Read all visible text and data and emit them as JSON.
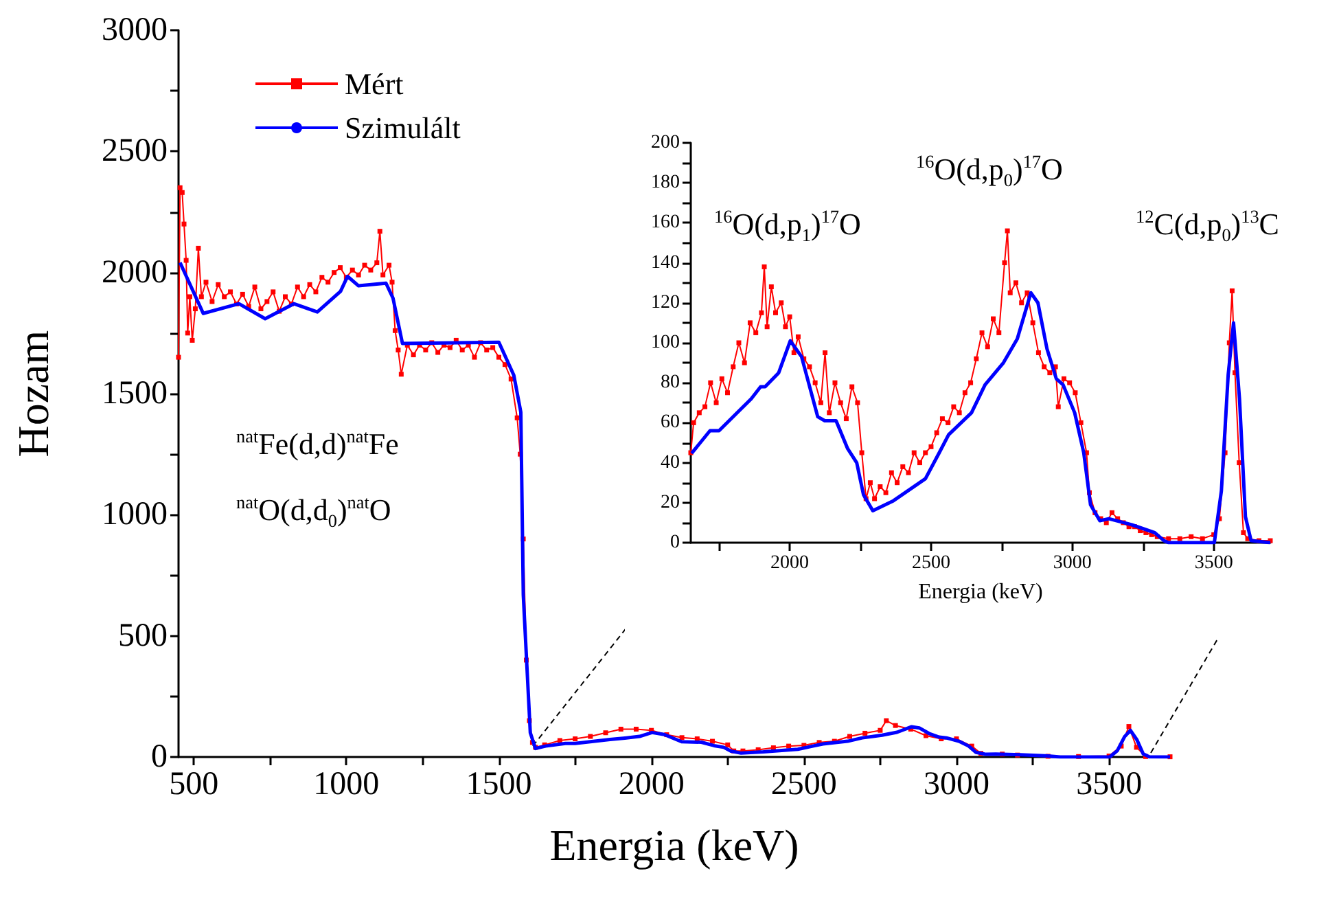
{
  "chart_data": [
    {
      "type": "line",
      "xlabel": "Energia (keV)",
      "ylabel": "Hozam",
      "xlim": [
        450,
        3700
      ],
      "ylim": [
        0,
        3000
      ],
      "xticks": [
        500,
        {
          "value": 750,
          "label": null
        },
        1000,
        {
          "value": 1250,
          "label": null
        },
        1500,
        {
          "value": 1750,
          "label": null
        },
        2000,
        {
          "value": 2250,
          "label": null
        },
        2500,
        {
          "value": 2750,
          "label": null
        },
        3000,
        {
          "value": 3250,
          "label": null
        },
        3500
      ],
      "yticks": [
        0,
        {
          "value": 250,
          "label": null
        },
        500,
        {
          "value": 750,
          "label": null
        },
        1000,
        {
          "value": 1250,
          "label": null
        },
        1500,
        {
          "value": 1750,
          "label": null
        },
        2000,
        {
          "value": 2250,
          "label": null
        },
        2500,
        {
          "value": 2750,
          "label": null
        },
        3000
      ],
      "legend": "top left",
      "grid": false,
      "annotations": [
        "$^{nat}$Fe(d,d)$^{nat}$Fe",
        "$^{nat}$O(d,d$_{0}$)$^{nat}$O"
      ],
      "series": [
        {
          "name": "Mért",
          "color": "#ff0000",
          "marker": "square",
          "x": [
            450,
            455,
            462,
            468,
            475,
            480,
            487,
            495,
            505,
            515,
            525,
            540,
            560,
            580,
            600,
            620,
            640,
            660,
            680,
            700,
            720,
            740,
            760,
            780,
            800,
            820,
            840,
            860,
            880,
            900,
            920,
            940,
            960,
            980,
            1000,
            1020,
            1040,
            1060,
            1080,
            1100,
            1110,
            1120,
            1140,
            1150,
            1160,
            1170,
            1180,
            1200,
            1220,
            1240,
            1260,
            1280,
            1300,
            1320,
            1340,
            1360,
            1380,
            1400,
            1420,
            1440,
            1460,
            1480,
            1500,
            1520,
            1540,
            1560,
            1570,
            1580,
            1590,
            1600,
            1610,
            1620,
            1650,
            1700,
            1750,
            1800,
            1850,
            1900,
            1950,
            2000,
            2050,
            2100,
            2150,
            2200,
            2250,
            2270,
            2300,
            2350,
            2400,
            2450,
            2500,
            2550,
            2600,
            2650,
            2700,
            2750,
            2770,
            2800,
            2850,
            2900,
            2950,
            3000,
            3050,
            3080,
            3150,
            3200,
            3300,
            3400,
            3500,
            3540,
            3565,
            3590,
            3620,
            3700
          ],
          "values": [
            1650,
            2350,
            2330,
            2200,
            2050,
            1750,
            1900,
            1720,
            1850,
            2100,
            1900,
            1960,
            1880,
            1950,
            1900,
            1920,
            1870,
            1910,
            1860,
            1940,
            1850,
            1880,
            1920,
            1840,
            1900,
            1870,
            1940,
            1900,
            1950,
            1920,
            1980,
            1960,
            2000,
            2020,
            1980,
            2010,
            1990,
            2030,
            2010,
            2040,
            2170,
            1990,
            2030,
            1960,
            1760,
            1680,
            1580,
            1700,
            1660,
            1700,
            1680,
            1710,
            1670,
            1700,
            1690,
            1720,
            1680,
            1700,
            1650,
            1710,
            1680,
            1690,
            1650,
            1620,
            1560,
            1400,
            1250,
            900,
            400,
            150,
            60,
            40,
            50,
            68,
            75,
            85,
            100,
            115,
            115,
            110,
            92,
            80,
            75,
            65,
            50,
            25,
            25,
            30,
            38,
            45,
            48,
            60,
            65,
            85,
            98,
            110,
            150,
            130,
            115,
            88,
            75,
            75,
            45,
            15,
            12,
            8,
            3,
            2,
            4,
            45,
            126,
            40,
            2,
            1
          ]
        },
        {
          "name": "Szimulált",
          "color": "#0000ff",
          "marker": "none",
          "x": [
            455,
            531,
            648,
            734,
            828,
            905,
            981,
            1004,
            1040,
            1130,
            1153,
            1184,
            1500,
            1549,
            1572,
            1580,
            1603,
            1620,
            1653,
            1718,
            1750,
            1864,
            1913,
            1961,
            2002,
            2042,
            2099,
            2164,
            2205,
            2237,
            2261,
            2294,
            2367,
            2480,
            2529,
            2562,
            2643,
            2691,
            2756,
            2805,
            2853,
            2878,
            2910,
            2943,
            2967,
            3008,
            3040,
            3064,
            3097,
            3129,
            3210,
            3291,
            3340,
            3502,
            3527,
            3551,
            3570,
            3591,
            3612,
            3632,
            3700
          ],
          "values": [
            2041,
            1831,
            1871,
            1809,
            1871,
            1837,
            1922,
            1984,
            1945,
            1956,
            1894,
            1707,
            1712,
            1576,
            1423,
            669,
            100,
            35,
            45,
            56,
            56,
            72,
            78,
            85,
            101,
            93,
            63,
            61,
            47,
            40,
            24,
            16,
            21,
            32,
            45,
            54,
            65,
            79,
            90,
            102,
            125,
            120,
            97,
            82,
            79,
            65,
            45,
            19,
            11,
            12,
            9,
            5,
            0,
            0,
            26,
            84,
            110,
            72,
            13,
            1,
            0
          ]
        }
      ]
    },
    {
      "type": "line",
      "xlabel": "Energia (keV)",
      "xlim": [
        1650,
        3700
      ],
      "ylim": [
        0,
        200
      ],
      "xticks": [
        {
          "value": 1750,
          "label": null
        },
        2000,
        {
          "value": 2250,
          "label": null
        },
        2500,
        {
          "value": 2750,
          "label": null
        },
        3000,
        {
          "value": 3250,
          "label": null
        },
        3500
      ],
      "yticks": [
        0,
        {
          "value": 10,
          "label": null
        },
        20,
        {
          "value": 30,
          "label": null
        },
        40,
        {
          "value": 50,
          "label": null
        },
        60,
        {
          "value": 70,
          "label": null
        },
        80,
        {
          "value": 90,
          "label": null
        },
        100,
        {
          "value": 110,
          "label": null
        },
        120,
        {
          "value": 130,
          "label": null
        },
        140,
        {
          "value": 150,
          "label": null
        },
        160,
        {
          "value": 170,
          "label": null
        },
        180,
        {
          "value": 190,
          "label": null
        },
        200
      ],
      "grid": false,
      "annotations": [
        "$^{16}$O(d,p$_{1}$)$^{17}$O",
        "$^{16}$O(d,p$_{0}$)$^{17}$O",
        "$^{12}$C(d,p$_{0}$)$^{13}$C"
      ],
      "series": [
        {
          "color": "#ff0000",
          "marker": "square",
          "x": [
            1650,
            1660,
            1680,
            1700,
            1720,
            1740,
            1760,
            1780,
            1800,
            1820,
            1840,
            1860,
            1880,
            1900,
            1910,
            1920,
            1935,
            1950,
            1970,
            1985,
            2000,
            2015,
            2030,
            2050,
            2070,
            2090,
            2110,
            2125,
            2140,
            2160,
            2180,
            2200,
            2220,
            2240,
            2255,
            2270,
            2285,
            2300,
            2320,
            2340,
            2360,
            2380,
            2400,
            2420,
            2440,
            2460,
            2480,
            2500,
            2520,
            2540,
            2560,
            2580,
            2600,
            2620,
            2640,
            2660,
            2680,
            2700,
            2720,
            2740,
            2760,
            2770,
            2780,
            2800,
            2820,
            2840,
            2860,
            2880,
            2900,
            2920,
            2940,
            2950,
            2970,
            2990,
            3010,
            3030,
            3050,
            3060,
            3080,
            3100,
            3120,
            3140,
            3160,
            3180,
            3200,
            3220,
            3240,
            3260,
            3280,
            3300,
            3340,
            3380,
            3420,
            3460,
            3500,
            3520,
            3540,
            3555,
            3565,
            3575,
            3590,
            3605,
            3620,
            3660,
            3700
          ],
          "values": [
            45,
            60,
            65,
            68,
            80,
            70,
            82,
            75,
            88,
            100,
            90,
            110,
            105,
            115,
            138,
            108,
            128,
            115,
            120,
            108,
            113,
            95,
            103,
            92,
            88,
            80,
            70,
            95,
            65,
            80,
            70,
            62,
            78,
            70,
            45,
            22,
            30,
            22,
            28,
            25,
            35,
            30,
            38,
            35,
            45,
            40,
            45,
            48,
            55,
            62,
            60,
            68,
            65,
            75,
            80,
            92,
            105,
            98,
            112,
            105,
            140,
            156,
            125,
            130,
            120,
            125,
            110,
            95,
            88,
            85,
            88,
            68,
            82,
            80,
            75,
            60,
            45,
            25,
            15,
            12,
            10,
            15,
            12,
            10,
            8,
            8,
            6,
            5,
            4,
            3,
            2,
            2,
            3,
            2,
            4,
            12,
            45,
            100,
            126,
            85,
            40,
            5,
            2,
            1,
            1
          ]
        },
        {
          "color": "#0000ff",
          "marker": "none",
          "x": [
            1653,
            1718,
            1750,
            1864,
            1897,
            1913,
            1961,
            2002,
            2042,
            2099,
            2124,
            2164,
            2205,
            2237,
            2261,
            2294,
            2367,
            2480,
            2529,
            2562,
            2643,
            2691,
            2756,
            2805,
            2853,
            2878,
            2910,
            2943,
            2967,
            3008,
            3040,
            3064,
            3097,
            3129,
            3210,
            3291,
            3324,
            3340,
            3502,
            3527,
            3551,
            3570,
            3591,
            3612,
            3632,
            3700
          ],
          "values": [
            44.7,
            56,
            56,
            72,
            78,
            78,
            85,
            101,
            93,
            63,
            61,
            61,
            47,
            40,
            24,
            16,
            21,
            32,
            45,
            54,
            65,
            79,
            90,
            102,
            125,
            120,
            97,
            82,
            79,
            65,
            45,
            19,
            11,
            12,
            9,
            5,
            1,
            0,
            0,
            26,
            84,
            110,
            72,
            13,
            1,
            0
          ]
        }
      ]
    }
  ]
}
